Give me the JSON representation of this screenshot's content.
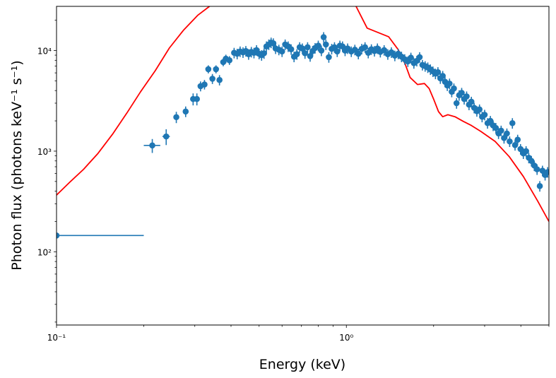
{
  "chart_data": {
    "type": "scatter",
    "xlabel": "Energy (keV)",
    "ylabel": "Photon flux (photons keV⁻¹ s⁻¹)",
    "xscale": "log",
    "yscale": "log",
    "xlim": [
      0.1,
      5.0
    ],
    "ylim": [
      18.7,
      27500
    ],
    "grid": false,
    "x_ticks": [
      {
        "value": 0.1,
        "label": "10⁻¹"
      },
      {
        "value": 1,
        "label": "10⁰"
      }
    ],
    "y_ticks": [
      {
        "value": 100,
        "label": "10²"
      },
      {
        "value": 1000,
        "label": "10³"
      },
      {
        "value": 10000,
        "label": "10⁴"
      }
    ],
    "colors": {
      "data": "#1f77b4",
      "model": "#ff0000"
    },
    "data_series": {
      "yerr_fraction": 0.12,
      "points_with_errors": [
        [
          0.1,
          145,
          0,
          0.1,
          0.2
        ],
        [
          0.214,
          1140,
          180,
          0.2,
          0.228
        ],
        [
          0.239,
          1400,
          250,
          0.232,
          0.246
        ],
        [
          0.259,
          2180,
          280
        ],
        [
          0.279,
          2480,
          300
        ],
        [
          0.296,
          3300,
          450
        ],
        [
          0.305,
          3300,
          450
        ],
        [
          0.314,
          4430,
          500
        ],
        [
          0.324,
          4600,
          500
        ],
        [
          0.334,
          6530,
          600
        ],
        [
          0.345,
          5250,
          600
        ],
        [
          0.355,
          6530,
          600
        ],
        [
          0.365,
          5100,
          600
        ],
        [
          0.376,
          7680,
          700
        ],
        [
          0.384,
          8300,
          800
        ],
        [
          0.395,
          8000,
          800
        ]
      ],
      "points": [
        [
          0.41,
          9500
        ],
        [
          0.42,
          9300
        ],
        [
          0.43,
          9800
        ],
        [
          0.44,
          9600
        ],
        [
          0.45,
          9900
        ],
        [
          0.46,
          9200
        ],
        [
          0.47,
          9700
        ],
        [
          0.48,
          9500
        ],
        [
          0.49,
          10100
        ],
        [
          0.5,
          9300
        ],
        [
          0.51,
          9000
        ],
        [
          0.52,
          9400
        ],
        [
          0.53,
          11000
        ],
        [
          0.54,
          11500
        ],
        [
          0.55,
          12000
        ],
        [
          0.56,
          11800
        ],
        [
          0.57,
          10500
        ],
        [
          0.585,
          10200
        ],
        [
          0.6,
          9800
        ],
        [
          0.615,
          11500
        ],
        [
          0.63,
          11000
        ],
        [
          0.645,
          10300
        ],
        [
          0.66,
          8700
        ],
        [
          0.675,
          9200
        ],
        [
          0.69,
          10800
        ],
        [
          0.705,
          10500
        ],
        [
          0.72,
          9400
        ],
        [
          0.735,
          10800
        ],
        [
          0.75,
          8800
        ],
        [
          0.765,
          9900
        ],
        [
          0.78,
          10600
        ],
        [
          0.8,
          11200
        ],
        [
          0.82,
          10000
        ],
        [
          0.835,
          13600
        ],
        [
          0.85,
          11500
        ],
        [
          0.87,
          8600
        ],
        [
          0.89,
          10400
        ],
        [
          0.91,
          10800
        ],
        [
          0.93,
          9800
        ],
        [
          0.95,
          11200
        ],
        [
          0.97,
          11000
        ],
        [
          0.99,
          10000
        ],
        [
          1.01,
          10500
        ],
        [
          1.04,
          9800
        ],
        [
          1.07,
          10200
        ],
        [
          1.1,
          9300
        ],
        [
          1.13,
          10400
        ],
        [
          1.16,
          10800
        ],
        [
          1.19,
          9500
        ],
        [
          1.22,
          10300
        ],
        [
          1.25,
          9900
        ],
        [
          1.28,
          10500
        ],
        [
          1.31,
          9700
        ],
        [
          1.35,
          10100
        ],
        [
          1.39,
          9200
        ],
        [
          1.43,
          9600
        ],
        [
          1.47,
          8900
        ],
        [
          1.51,
          9300
        ],
        [
          1.55,
          8700
        ],
        [
          1.59,
          8200
        ],
        [
          1.63,
          7800
        ],
        [
          1.67,
          8500
        ],
        [
          1.71,
          7500
        ],
        [
          1.75,
          7900
        ],
        [
          1.79,
          8600
        ],
        [
          1.83,
          7200
        ],
        [
          1.87,
          7000
        ],
        [
          1.91,
          6800
        ],
        [
          1.95,
          6500
        ],
        [
          1.99,
          6200
        ],
        [
          2.03,
          5900
        ],
        [
          2.07,
          6100
        ],
        [
          2.11,
          5300
        ],
        [
          2.15,
          5600
        ],
        [
          2.19,
          4900
        ],
        [
          2.23,
          4500
        ],
        [
          2.27,
          4700
        ],
        [
          2.31,
          3900
        ],
        [
          2.35,
          4200
        ],
        [
          2.4,
          3000
        ],
        [
          2.45,
          3600
        ],
        [
          2.5,
          3800
        ],
        [
          2.55,
          3300
        ],
        [
          2.6,
          3500
        ],
        [
          2.65,
          2900
        ],
        [
          2.7,
          3100
        ],
        [
          2.76,
          2700
        ],
        [
          2.82,
          2500
        ],
        [
          2.88,
          2600
        ],
        [
          2.94,
          2200
        ],
        [
          3.0,
          2300
        ],
        [
          3.07,
          1900
        ],
        [
          3.14,
          2000
        ],
        [
          3.21,
          1800
        ],
        [
          3.28,
          1700
        ],
        [
          3.35,
          1500
        ],
        [
          3.42,
          1600
        ],
        [
          3.5,
          1350
        ],
        [
          3.58,
          1500
        ],
        [
          3.66,
          1250
        ],
        [
          3.74,
          1900
        ],
        [
          3.82,
          1150
        ],
        [
          3.9,
          1300
        ],
        [
          3.99,
          1050
        ],
        [
          4.08,
          950
        ],
        [
          4.17,
          1000
        ],
        [
          4.26,
          860
        ],
        [
          4.35,
          800
        ],
        [
          4.45,
          720
        ],
        [
          4.55,
          660
        ],
        [
          4.65,
          450
        ],
        [
          4.75,
          640
        ],
        [
          4.85,
          580
        ],
        [
          4.95,
          620
        ]
      ]
    },
    "model_series": {
      "points": [
        [
          0.1,
          366
        ],
        [
          0.111,
          490
        ],
        [
          0.124,
          660
        ],
        [
          0.139,
          950
        ],
        [
          0.156,
          1470
        ],
        [
          0.175,
          2400
        ],
        [
          0.195,
          3900
        ],
        [
          0.219,
          6300
        ],
        [
          0.245,
          10600
        ],
        [
          0.274,
          15900
        ],
        [
          0.307,
          22400
        ],
        [
          0.337,
          27500
        ],
        [
          0.4,
          40000
        ],
        [
          0.5,
          48000
        ],
        [
          0.6,
          50000
        ],
        [
          0.7,
          48000
        ],
        [
          0.8,
          42000
        ],
        [
          0.9,
          35000
        ],
        [
          1.0,
          30000
        ],
        [
          1.08,
          27500
        ],
        [
          1.18,
          16700
        ],
        [
          1.4,
          13700
        ],
        [
          1.51,
          10200
        ],
        [
          1.6,
          7200
        ],
        [
          1.66,
          5400
        ],
        [
          1.76,
          4600
        ],
        [
          1.86,
          4700
        ],
        [
          1.93,
          4200
        ],
        [
          2.0,
          3300
        ],
        [
          2.08,
          2470
        ],
        [
          2.15,
          2200
        ],
        [
          2.24,
          2300
        ],
        [
          2.37,
          2200
        ],
        [
          2.53,
          1980
        ],
        [
          2.7,
          1800
        ],
        [
          2.91,
          1570
        ],
        [
          3.26,
          1250
        ],
        [
          3.65,
          880
        ],
        [
          4.08,
          560
        ],
        [
          4.57,
          320
        ],
        [
          5.0,
          200
        ]
      ]
    }
  }
}
